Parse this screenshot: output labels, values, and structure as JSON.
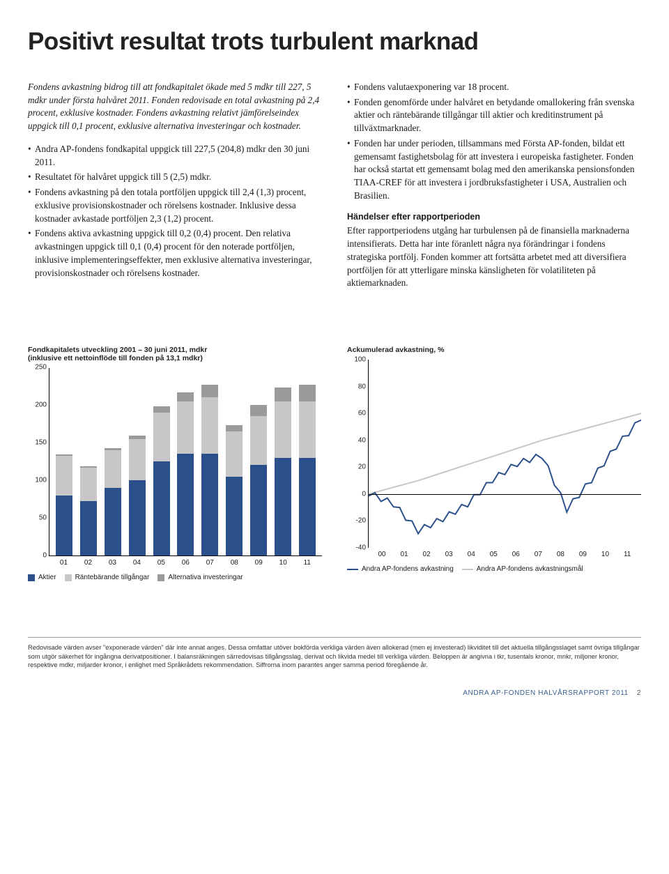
{
  "title": "Positivt resultat trots turbulent marknad",
  "left": {
    "intro": "Fondens avkastning bidrog till att fondkapitalet ökade med 5 mdkr till 227, 5 mdkr under första halvåret 2011. Fonden redovisade en total avkastning på 2,4 procent, exklusive kostnader. Fondens avkastning relativt jämförelseindex uppgick till 0,1 procent, exklusive alternativa investeringar och kostnader.",
    "bullets": [
      "Andra AP-fondens fondkapital uppgick till 227,5 (204,8) mdkr den 30 juni 2011.",
      "Resultatet för halvåret uppgick till 5 (2,5) mdkr.",
      "Fondens avkastning på den totala portföljen uppgick till 2,4 (1,3) procent, exklusive provisionskostnader och rörelsens kostnader. Inklusive dessa kostnader avkastade portföljen 2,3 (1,2) procent.",
      "Fondens aktiva avkastning uppgick till 0,2 (0,4) procent. Den relativa avkastningen uppgick till 0,1 (0,4) procent för den noterade portföljen, inklusive implementeringseffekter, men exklusive alternativa investeringar, provisionskostnader och rörelsens kostnader."
    ]
  },
  "right": {
    "bullets": [
      "Fondens valutaexponering var 18 procent.",
      "Fonden genomförde under halvåret en betydande omallokering från svenska aktier och räntebärande tillgångar till aktier och kreditinstrument på tillväxtmarknader.",
      "Fonden har under perioden, tillsammans med Första AP-fonden, bildat ett gemensamt fastighetsbolag för att investera i europeiska fastigheter. Fonden har också startat ett gemensamt bolag med den amerikanska pensionsfonden TIAA-CREF för att investera i jordbruksfastigheter i USA, Australien och Brasilien."
    ],
    "subhead": "Händelser efter rapportperioden",
    "body": "Efter rapportperiodens utgång har turbulensen på de finansiella marknaderna intensifierats. Detta har inte föranlett några nya förändringar i fondens strategiska portfölj. Fonden kommer att fortsätta arbetet med att diversifiera portföljen för att ytterligare minska känsligheten för volatiliteten på aktiemarknaden."
  },
  "bar_chart": {
    "title": "Fondkapitalets utveckling 2001 – 30 juni 2011, mdkr\n(inklusive ett nettoinflöde till fonden på 13,1 mdkr)",
    "colors": {
      "aktier": "#2a4f8a",
      "rantor": "#c7c7c7",
      "alt": "#9a9a9a",
      "axis": "#000"
    },
    "ymax": 250,
    "yticks": [
      0,
      50,
      100,
      150,
      200,
      250
    ],
    "categories": [
      "01",
      "02",
      "03",
      "04",
      "05",
      "06",
      "07",
      "08",
      "09",
      "10",
      "11"
    ],
    "series": {
      "aktier": [
        80,
        72,
        90,
        100,
        125,
        135,
        135,
        105,
        120,
        130,
        130
      ],
      "rantor": [
        52,
        45,
        50,
        55,
        65,
        70,
        75,
        60,
        65,
        75,
        75
      ],
      "alt": [
        2,
        2,
        3,
        4,
        8,
        12,
        17,
        8,
        15,
        18,
        22
      ]
    },
    "legend": [
      {
        "label": "Aktier",
        "key": "aktier"
      },
      {
        "label": "Räntebärande tillgångar",
        "key": "rantor"
      },
      {
        "label": "Alternativa investeringar",
        "key": "alt"
      }
    ]
  },
  "line_chart": {
    "title": "Ackumulerad avkastning, %",
    "colors": {
      "avkastning": "#2a4f8a",
      "mal": "#c7c7c7",
      "axis": "#000"
    },
    "ymin": -40,
    "ymax": 100,
    "yticks": [
      -40,
      -20,
      0,
      20,
      40,
      60,
      80,
      100
    ],
    "categories": [
      "00",
      "01",
      "02",
      "03",
      "04",
      "05",
      "06",
      "07",
      "08",
      "09",
      "10",
      "11"
    ],
    "series": {
      "avkastning": [
        0,
        -8,
        -28,
        -19,
        -8,
        10,
        22,
        28,
        -12,
        10,
        35,
        55
      ],
      "mal": [
        0,
        5,
        10,
        16,
        22,
        28,
        34,
        40,
        45,
        50,
        55,
        60
      ]
    },
    "legend": [
      {
        "label": "Andra AP-fondens avkastning",
        "key": "avkastning"
      },
      {
        "label": "Andra AP-fondens avkastningsmål",
        "key": "mal"
      }
    ]
  },
  "footnote": "Redovisade värden avser \"exponerade värden\" där inte annat anges. Dessa omfattar utöver bokförda verkliga värden även allokerad (men ej investerad) likviditet till det aktuella tillgångsslaget samt övriga tillgångar som utgör säkerhet för ingångna derivatpositioner. I balansräkningen särredovisas tillgångsslag, derivat och likvida medel till verkliga värden. Beloppen är angivna i tkr, tusentals kronor, mnkr, miljoner kronor, respektive mdkr, miljarder kronor, i enlighet med Språkrådets rekommendation. Siffrorna inom parantes anger samma period föregående år.",
  "footer_text": "ANDRA AP-FONDEN HALVÅRSRAPPORT 2011",
  "footer_page": "2"
}
